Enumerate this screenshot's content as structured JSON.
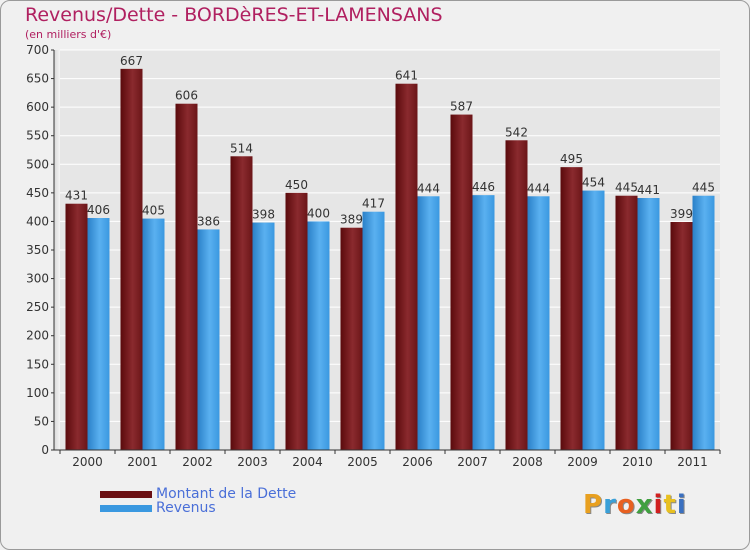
{
  "header": {
    "title": "Revenus/Dette - BORDèRES-ET-LAMENSANS",
    "subtitle": "(en milliers d'€)"
  },
  "legend": {
    "items": [
      {
        "label": "Montant de la Dette",
        "color": "#6b0f12"
      },
      {
        "label": "Revenus",
        "color": "#3a98e0"
      }
    ]
  },
  "logo": {
    "text": "Proxiti",
    "colors": [
      "#e8a020",
      "#3aa0d8",
      "#e86020",
      "#40a040",
      "#d02020",
      "#e8c020",
      "#3a70c0"
    ]
  },
  "chart_data": {
    "type": "bar",
    "categories": [
      "2000",
      "2001",
      "2002",
      "2003",
      "2004",
      "2005",
      "2006",
      "2007",
      "2008",
      "2009",
      "2010",
      "2011"
    ],
    "series": [
      {
        "name": "Montant de la Dette",
        "values": [
          431,
          667,
          606,
          514,
          450,
          389,
          641,
          587,
          542,
          495,
          445,
          399
        ]
      },
      {
        "name": "Revenus",
        "values": [
          406,
          405,
          386,
          398,
          400,
          417,
          444,
          446,
          444,
          454,
          441,
          445
        ]
      }
    ],
    "title": "Revenus/Dette - BORDèRES-ET-LAMENSANS",
    "subtitle": "(en milliers d'€)",
    "ylim": [
      0,
      700
    ],
    "yticks": [
      0,
      50,
      100,
      150,
      200,
      250,
      300,
      350,
      400,
      450,
      500,
      550,
      600,
      650,
      700
    ],
    "grid": true,
    "legend_position": "bottom-left"
  }
}
